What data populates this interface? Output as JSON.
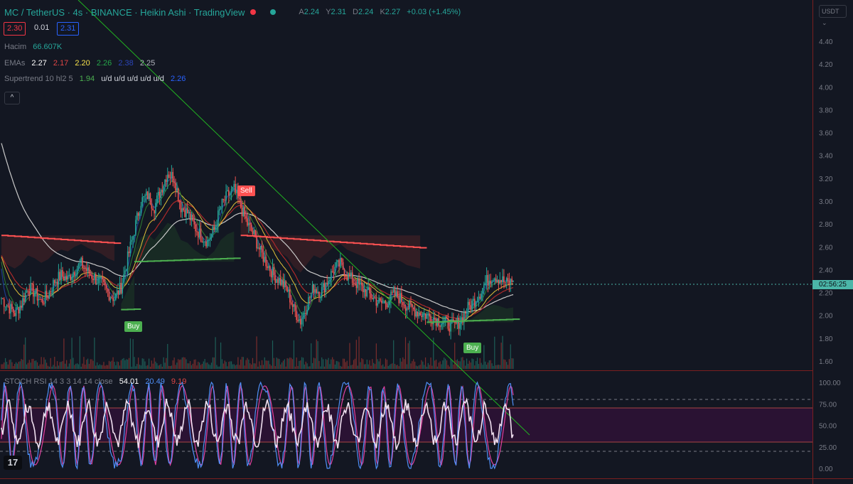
{
  "header": {
    "symbol_line": "MC / TetherUS · 4s · BINANCE · Heikin Ashi · TradingView",
    "ohlc": {
      "a_label": "A",
      "a_value": "2.24",
      "y_label": "Y",
      "y_value": "2.31",
      "d_label": "D",
      "d_value": "2.24",
      "k_label": "K",
      "k_value": "2.27",
      "change": "+0.03 (+1.45%)"
    },
    "bid": "2.30",
    "spread": "0.01",
    "ask": "2.31"
  },
  "indicators": {
    "volume": {
      "name": "Hacim",
      "value": "66.607K"
    },
    "emas": {
      "name": "EMAs",
      "values": [
        "2.27",
        "2.17",
        "2.20",
        "2.26",
        "2.38",
        "2.25"
      ]
    },
    "supertrend": {
      "name": "Supertrend 10 hl2 5",
      "value1": "1.94",
      "flags": "u/d u/d u/d u/d u/d",
      "value2": "2.26"
    },
    "stoch": {
      "name": "STOCH RSI 14 3 3 14 14 close",
      "values": [
        "54.01",
        "20.49",
        "9.19"
      ]
    }
  },
  "controls": {
    "collapse": "^",
    "currency": "USDT",
    "currency_chevron": "⌄",
    "logo": "17"
  },
  "price_axis": {
    "ticks": [
      "4.40",
      "4.20",
      "4.00",
      "3.80",
      "3.60",
      "3.40",
      "3.20",
      "3.00",
      "2.80",
      "2.60",
      "2.40",
      "2.20",
      "2.00",
      "1.80",
      "1.60"
    ],
    "countdown": "02:56:25"
  },
  "stoch_axis": {
    "ticks": [
      "100.00",
      "75.00",
      "50.00",
      "25.00",
      "0.00"
    ]
  },
  "signals": {
    "buy": "Buy",
    "sell": "Sell"
  },
  "colors": {
    "background": "#131722",
    "up": "#26a69a",
    "down": "#ef5350",
    "supertrend_up": "#4caf50",
    "supertrend_down": "#ff5252",
    "ema_white": "#c8c8c8",
    "ema_red": "#ad2a2a",
    "ema_yellow": "#e0c13a",
    "ema_green": "#2e7d32",
    "ema_blue": "#1e3c8c",
    "trendline": "#21b321",
    "stoch_k": "#4f8ff7",
    "stoch_d": "#e040a0",
    "stoch_rsi": "#f0e0f0",
    "stoch_band": "#2a1233",
    "accent_box_red": "#f23645",
    "accent_box_blue": "#2962ff"
  },
  "chart_data": {
    "type": "candlestick",
    "ylim": [
      1.55,
      4.45
    ],
    "close_series": [
      2.15,
      2.08,
      2.02,
      2.1,
      2.25,
      2.2,
      2.12,
      2.18,
      2.3,
      2.35,
      2.32,
      2.4,
      2.45,
      2.38,
      2.33,
      2.28,
      2.2,
      2.15,
      2.25,
      2.5,
      2.75,
      3.0,
      3.05,
      2.95,
      3.1,
      3.25,
      3.2,
      2.95,
      2.9,
      2.78,
      2.7,
      2.65,
      2.75,
      2.95,
      3.05,
      3.1,
      2.95,
      2.8,
      2.7,
      2.55,
      2.45,
      2.35,
      2.3,
      2.22,
      2.05,
      1.95,
      2.1,
      2.25,
      2.2,
      2.3,
      2.4,
      2.45,
      2.35,
      2.3,
      2.25,
      2.2,
      2.15,
      2.1,
      2.12,
      2.18,
      2.15,
      2.08,
      2.05,
      2.02,
      2.0,
      1.98,
      1.95,
      1.93,
      1.9,
      1.95,
      2.05,
      2.12,
      2.2,
      2.3,
      2.35,
      2.32,
      2.28,
      2.3
    ],
    "supertrend": [
      {
        "from": 0,
        "to": 17,
        "value": 2.7,
        "dir": "down"
      },
      {
        "from": 18,
        "to": 20,
        "value": 2.05,
        "dir": "up"
      },
      {
        "from": 20,
        "to": 35,
        "value": 2.47,
        "dir": "up"
      },
      {
        "from": 36,
        "to": 63,
        "value": 2.7,
        "dir": "down"
      },
      {
        "from": 64,
        "to": 77,
        "value": 1.94,
        "dir": "up"
      }
    ],
    "stoch_band": [
      20,
      80
    ]
  }
}
